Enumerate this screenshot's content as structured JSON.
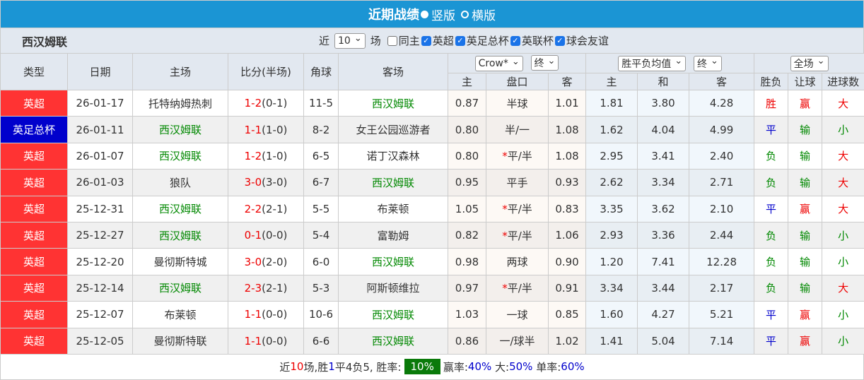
{
  "header": {
    "title": "近期战绩",
    "options": [
      {
        "label": "竖版",
        "selected": true
      },
      {
        "label": "横版",
        "selected": false
      }
    ]
  },
  "filter": {
    "team": "西汉姆联",
    "near": "近",
    "count": "10",
    "games": "场",
    "checks": [
      {
        "label": "同主",
        "checked": false
      },
      {
        "label": "英超",
        "checked": true
      },
      {
        "label": "英足总杯",
        "checked": true
      },
      {
        "label": "英联杯",
        "checked": true
      },
      {
        "label": "球会友谊",
        "checked": true
      }
    ]
  },
  "columns": {
    "type": "类型",
    "date": "日期",
    "home": "主场",
    "score": "比分(半场)",
    "corner": "角球",
    "away": "客场",
    "ah_company": "Crow*",
    "ah_stage": "终",
    "eu_type": "胜平负均值",
    "eu_stage": "终",
    "range": "全场",
    "ah_home": "主",
    "ah_line": "盘口",
    "ah_away": "客",
    "eu_home": "主",
    "eu_draw": "和",
    "eu_away": "客",
    "result": "胜负",
    "handicap": "让球",
    "goals": "进球数"
  },
  "colors": {
    "league_epl": "#ff3333",
    "league_fa": "#0000cc",
    "header_bg": "#1b95d4",
    "team_green": "#008800",
    "win_red": "#ee0000",
    "draw_blue": "#0000cc"
  },
  "team": "西汉姆联",
  "rows": [
    {
      "type": "英超",
      "type_color": "#ff3333",
      "date": "26-01-17",
      "home": "托特纳姆热刺",
      "score": "1-2",
      "half": "(0-1)",
      "corner": "11-5",
      "away": "西汉姆联",
      "ah_home": "0.87",
      "ah_line": "半球",
      "ah_away": "1.01",
      "eu_home": "1.81",
      "eu_draw": "3.80",
      "eu_away": "4.28",
      "result": "胜",
      "handicap": "赢",
      "goals": "大"
    },
    {
      "type": "英足总杯",
      "type_color": "#0000cc",
      "date": "26-01-11",
      "home": "西汉姆联",
      "score": "1-1",
      "half": "(1-0)",
      "corner": "8-2",
      "away": "女王公园巡游者",
      "ah_home": "0.80",
      "ah_line": "半/一",
      "ah_away": "1.08",
      "eu_home": "1.62",
      "eu_draw": "4.04",
      "eu_away": "4.99",
      "result": "平",
      "handicap": "输",
      "goals": "小"
    },
    {
      "type": "英超",
      "type_color": "#ff3333",
      "date": "26-01-07",
      "home": "西汉姆联",
      "score": "1-2",
      "half": "(1-0)",
      "corner": "6-5",
      "away": "诺丁汉森林",
      "ah_home": "0.80",
      "ah_line": "*平/半",
      "ah_away": "1.08",
      "eu_home": "2.95",
      "eu_draw": "3.41",
      "eu_away": "2.40",
      "result": "负",
      "handicap": "输",
      "goals": "大"
    },
    {
      "type": "英超",
      "type_color": "#ff3333",
      "date": "26-01-03",
      "home": "狼队",
      "score": "3-0",
      "half": "(3-0)",
      "corner": "6-7",
      "away": "西汉姆联",
      "ah_home": "0.95",
      "ah_line": "平手",
      "ah_away": "0.93",
      "eu_home": "2.62",
      "eu_draw": "3.34",
      "eu_away": "2.71",
      "result": "负",
      "handicap": "输",
      "goals": "大"
    },
    {
      "type": "英超",
      "type_color": "#ff3333",
      "date": "25-12-31",
      "home": "西汉姆联",
      "score": "2-2",
      "half": "(2-1)",
      "corner": "5-5",
      "away": "布莱顿",
      "ah_home": "1.05",
      "ah_line": "*平/半",
      "ah_away": "0.83",
      "eu_home": "3.35",
      "eu_draw": "3.62",
      "eu_away": "2.10",
      "result": "平",
      "handicap": "赢",
      "goals": "大"
    },
    {
      "type": "英超",
      "type_color": "#ff3333",
      "date": "25-12-27",
      "home": "西汉姆联",
      "score": "0-1",
      "half": "(0-0)",
      "corner": "5-4",
      "away": "富勒姆",
      "ah_home": "0.82",
      "ah_line": "*平/半",
      "ah_away": "1.06",
      "eu_home": "2.93",
      "eu_draw": "3.36",
      "eu_away": "2.44",
      "result": "负",
      "handicap": "输",
      "goals": "小"
    },
    {
      "type": "英超",
      "type_color": "#ff3333",
      "date": "25-12-20",
      "home": "曼彻斯特城",
      "score": "3-0",
      "half": "(2-0)",
      "corner": "6-0",
      "away": "西汉姆联",
      "ah_home": "0.98",
      "ah_line": "两球",
      "ah_away": "0.90",
      "eu_home": "1.20",
      "eu_draw": "7.41",
      "eu_away": "12.28",
      "result": "负",
      "handicap": "输",
      "goals": "小"
    },
    {
      "type": "英超",
      "type_color": "#ff3333",
      "date": "25-12-14",
      "home": "西汉姆联",
      "score": "2-3",
      "half": "(2-1)",
      "corner": "5-3",
      "away": "阿斯顿维拉",
      "ah_home": "0.97",
      "ah_line": "*平/半",
      "ah_away": "0.91",
      "eu_home": "3.34",
      "eu_draw": "3.44",
      "eu_away": "2.17",
      "result": "负",
      "handicap": "输",
      "goals": "大"
    },
    {
      "type": "英超",
      "type_color": "#ff3333",
      "date": "25-12-07",
      "home": "布莱顿",
      "score": "1-1",
      "half": "(0-0)",
      "corner": "10-6",
      "away": "西汉姆联",
      "ah_home": "1.03",
      "ah_line": "一球",
      "ah_away": "0.85",
      "eu_home": "1.60",
      "eu_draw": "4.27",
      "eu_away": "5.21",
      "result": "平",
      "handicap": "赢",
      "goals": "小"
    },
    {
      "type": "英超",
      "type_color": "#ff3333",
      "date": "25-12-05",
      "home": "曼彻斯特联",
      "score": "1-1",
      "half": "(0-0)",
      "corner": "6-6",
      "away": "西汉姆联",
      "ah_home": "0.86",
      "ah_line": "一/球半",
      "ah_away": "1.02",
      "eu_home": "1.41",
      "eu_draw": "5.04",
      "eu_away": "7.14",
      "result": "平",
      "handicap": "赢",
      "goals": "小"
    }
  ],
  "summary": {
    "p1": "近",
    "n": "10",
    "p2": "场,胜",
    "w": "1",
    "p3": "平4负5, 胜率:",
    "winrate": "10%",
    "p4": "赢率:",
    "ying": "40%",
    "p5": "大:",
    "da": "50%",
    "p6": "单率:",
    "dan": "60%"
  }
}
